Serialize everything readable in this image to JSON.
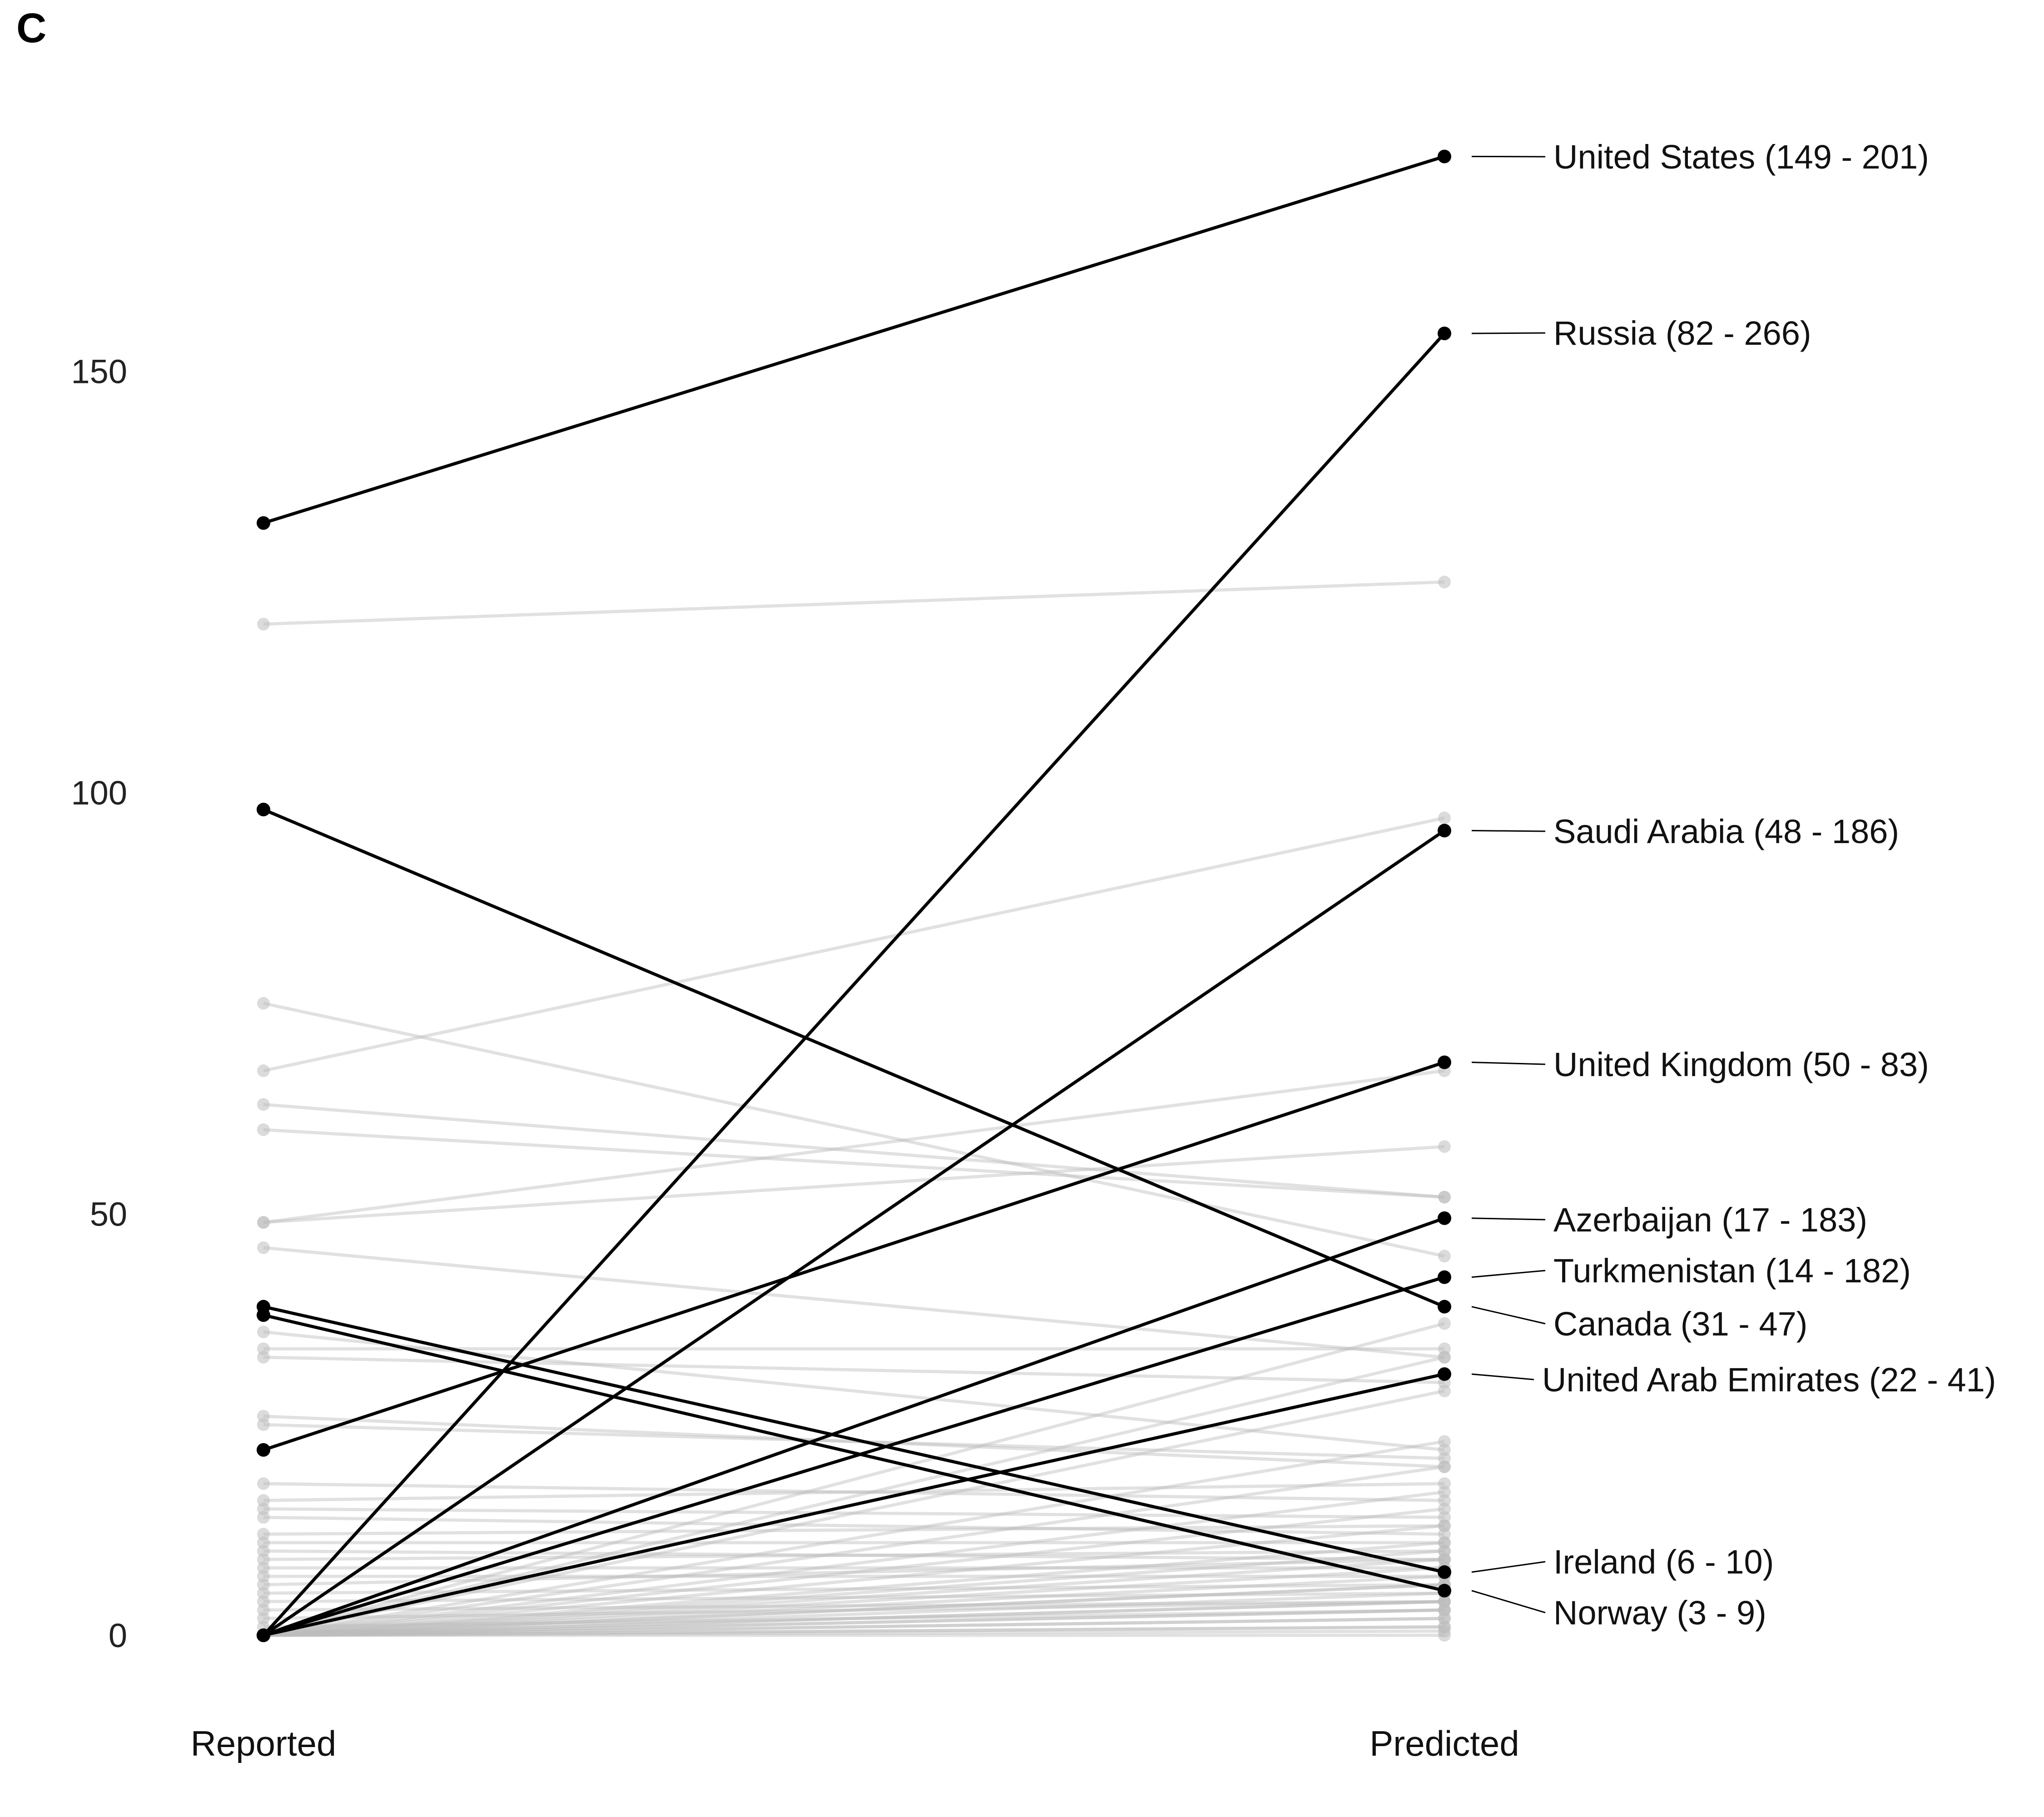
{
  "panel_label": "C",
  "chart_data": {
    "type": "line",
    "x": [
      "Reported",
      "Predicted"
    ],
    "ylim": [
      -5,
      175
    ],
    "yticks": [
      0,
      50,
      100,
      150
    ],
    "grid": false,
    "legend": "none",
    "colors": {
      "highlight": "#000000",
      "background": "#bdbdbd"
    },
    "highlighted": [
      {
        "name": "United States",
        "label": "United States (149 - 201)",
        "reported": 132,
        "predicted": 175.5
      },
      {
        "name": "Russia",
        "label": "Russia (82 - 266)",
        "reported": 0,
        "predicted": 154.5
      },
      {
        "name": "Saudi Arabia",
        "label": "Saudi Arabia (48 - 186)",
        "reported": 0,
        "predicted": 95.5
      },
      {
        "name": "United Kingdom",
        "label": "United Kingdom (50 - 83)",
        "reported": 22,
        "predicted": 68
      },
      {
        "name": "Azerbaijan",
        "label": "Azerbaijan (17 - 183)",
        "reported": 0,
        "predicted": 49.5
      },
      {
        "name": "Turkmenistan",
        "label": "Turkmenistan (14 - 182)",
        "reported": 0,
        "predicted": 42.5
      },
      {
        "name": "Canada",
        "label": "Canada (31 - 47)",
        "reported": 98,
        "predicted": 39
      },
      {
        "name": "United Arab Emirates",
        "label": "United Arab Emirates (22 - 41)",
        "reported": 0,
        "predicted": 31
      },
      {
        "name": "Ireland",
        "label": "Ireland (6 - 10)",
        "reported": 39,
        "predicted": 7.5
      },
      {
        "name": "Norway",
        "label": "Norway (3 - 9)",
        "reported": 38,
        "predicted": 5.3
      }
    ],
    "others": [
      [
        120,
        125
      ],
      [
        75,
        45
      ],
      [
        67,
        97
      ],
      [
        63,
        52
      ],
      [
        60,
        52
      ],
      [
        49,
        67
      ],
      [
        49,
        58
      ],
      [
        46,
        33
      ],
      [
        36,
        22
      ],
      [
        34,
        34
      ],
      [
        33,
        30
      ],
      [
        26,
        20
      ],
      [
        25,
        21
      ],
      [
        18,
        16
      ],
      [
        16,
        18
      ],
      [
        15,
        14
      ],
      [
        14,
        12
      ],
      [
        12,
        13
      ],
      [
        11,
        11
      ],
      [
        10,
        9
      ],
      [
        9,
        10
      ],
      [
        8,
        8
      ],
      [
        7,
        7
      ],
      [
        6,
        9
      ],
      [
        5,
        6
      ],
      [
        4,
        5
      ],
      [
        3,
        4
      ],
      [
        2,
        4
      ],
      [
        1,
        3
      ],
      [
        0,
        37
      ],
      [
        0,
        33
      ],
      [
        0,
        29
      ],
      [
        0,
        23
      ],
      [
        0,
        20
      ],
      [
        0,
        17
      ],
      [
        0,
        15
      ],
      [
        0,
        13
      ],
      [
        0,
        11
      ],
      [
        0,
        10
      ],
      [
        0,
        9
      ],
      [
        0,
        8
      ],
      [
        0,
        7
      ],
      [
        0,
        6
      ],
      [
        0,
        6
      ],
      [
        0,
        5
      ],
      [
        0,
        4
      ],
      [
        0,
        4
      ],
      [
        0,
        3
      ],
      [
        0,
        3
      ],
      [
        0,
        2
      ],
      [
        0,
        2
      ],
      [
        0,
        1
      ],
      [
        0,
        1
      ],
      [
        0,
        0.5
      ],
      [
        0,
        0
      ]
    ]
  }
}
